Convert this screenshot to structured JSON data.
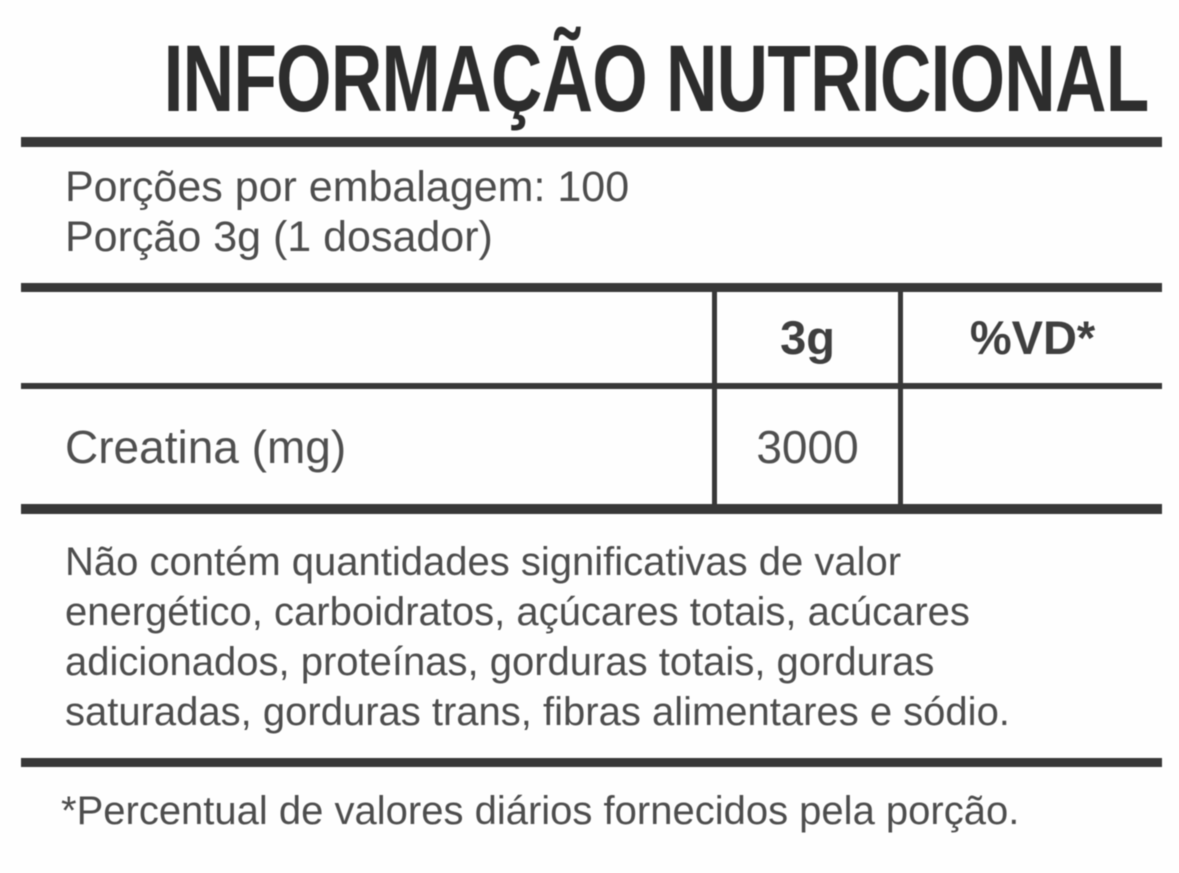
{
  "label": {
    "title": "INFORMAÇÃO NUTRICIONAL",
    "servings": {
      "per_package": "Porções por embalagem: 100",
      "portion": "Porção 3g (1 dosador)"
    },
    "table": {
      "columns": [
        "",
        "3g",
        "%VD*"
      ],
      "rows": [
        {
          "nutrient": "Creatina (mg)",
          "amount": "3000",
          "vd": ""
        }
      ]
    },
    "note_lines": [
      "Não contém quantidades significativas de valor",
      "energético, carboidratos, açúcares totais, acúcares",
      "adicionados, proteínas, gorduras totais, gorduras",
      "saturadas, gorduras trans, fibras alimentares e sódio."
    ],
    "footnote": "*Percentual de valores diários fornecidos pela porção.",
    "colors": {
      "background": "#fefefe",
      "rule": "#383838",
      "title_text": "#2d2d2d",
      "body_text": "#4d4d4d"
    }
  }
}
